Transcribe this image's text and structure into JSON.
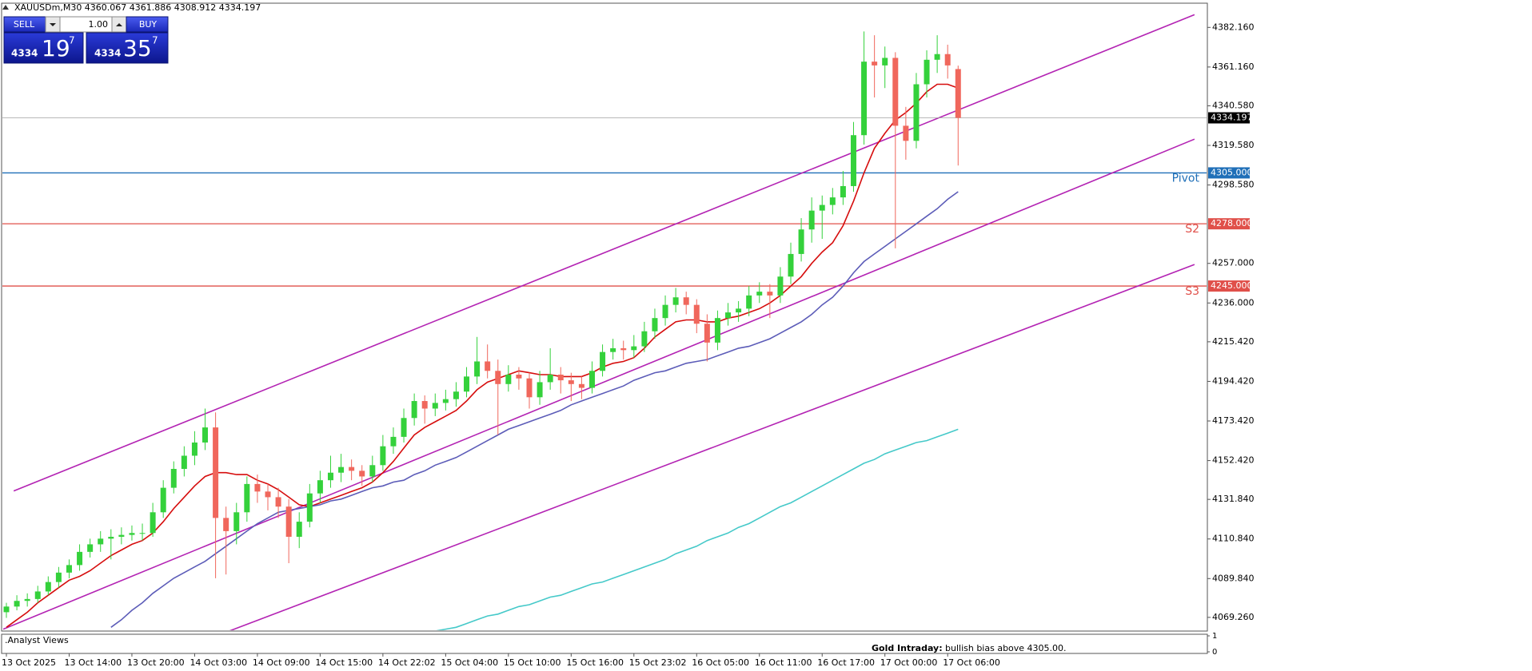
{
  "header": "XAUUSDm,M30  4360.067 4361.886 4308.912 4334.197",
  "trade_panel": {
    "sell": "SELL",
    "buy": "BUY",
    "lots": "1.00",
    "bid": {
      "big": "4334",
      "main": "19",
      "sup": "7"
    },
    "ask": {
      "big": "4334",
      "main": "35",
      "sup": "7"
    }
  },
  "chart_data": {
    "type": "candlestick",
    "categories": [
      "13 Oct 2025",
      null,
      null,
      null,
      null,
      null,
      "13 Oct 14:00",
      null,
      null,
      null,
      null,
      null,
      "13 Oct 20:00",
      null,
      null,
      null,
      null,
      null,
      "14 Oct 03:00",
      null,
      null,
      null,
      null,
      null,
      "14 Oct 09:00",
      null,
      null,
      null,
      null,
      null,
      "14 Oct 15:00",
      null,
      null,
      null,
      null,
      null,
      "14 Oct 22:02",
      null,
      null,
      null,
      null,
      null,
      "15 Oct 04:00",
      null,
      null,
      null,
      null,
      null,
      "15 Oct 10:00",
      null,
      null,
      null,
      null,
      null,
      "15 Oct 16:00",
      null,
      null,
      null,
      null,
      null,
      "15 Oct 23:02",
      null,
      null,
      null,
      null,
      null,
      "16 Oct 05:00",
      null,
      null,
      null,
      null,
      null,
      "16 Oct 11:00",
      null,
      null,
      null,
      null,
      null,
      "16 Oct 17:00",
      null,
      null,
      null,
      null,
      null,
      "17 Oct 00:00",
      null,
      null,
      null,
      null,
      null,
      "17 Oct 06:00",
      null
    ],
    "candles": [
      [
        4072,
        4077,
        4069,
        4075
      ],
      [
        4075,
        4081,
        4073,
        4078
      ],
      [
        4078,
        4082,
        4075,
        4079
      ],
      [
        4079,
        4086,
        4077,
        4083
      ],
      [
        4083,
        4091,
        4081,
        4088
      ],
      [
        4088,
        4096,
        4085,
        4093
      ],
      [
        4093,
        4100,
        4090,
        4097
      ],
      [
        4097,
        4108,
        4094,
        4104
      ],
      [
        4104,
        4111,
        4101,
        4108
      ],
      [
        4108,
        4115,
        4104,
        4111
      ],
      [
        4111,
        4116,
        4100,
        4112
      ],
      [
        4112,
        4117,
        4108,
        4113
      ],
      [
        4113,
        4118,
        4110,
        4114
      ],
      [
        4114,
        4119,
        4110,
        4114
      ],
      [
        4114,
        4130,
        4112,
        4125
      ],
      [
        4125,
        4142,
        4122,
        4138
      ],
      [
        4138,
        4152,
        4135,
        4148
      ],
      [
        4148,
        4160,
        4144,
        4155
      ],
      [
        4155,
        4168,
        4150,
        4162
      ],
      [
        4162,
        4180,
        4158,
        4170
      ],
      [
        4170,
        4178,
        4090,
        4122
      ],
      [
        4122,
        4128,
        4092,
        4115
      ],
      [
        4115,
        4130,
        4108,
        4125
      ],
      [
        4125,
        4144,
        4120,
        4140
      ],
      [
        4140,
        4145,
        4130,
        4136
      ],
      [
        4136,
        4140,
        4126,
        4133
      ],
      [
        4133,
        4138,
        4122,
        4128
      ],
      [
        4128,
        4132,
        4098,
        4112
      ],
      [
        4112,
        4125,
        4106,
        4120
      ],
      [
        4120,
        4140,
        4117,
        4135
      ],
      [
        4135,
        4147,
        4130,
        4142
      ],
      [
        4142,
        4155,
        4138,
        4146
      ],
      [
        4146,
        4156,
        4141,
        4149
      ],
      [
        4149,
        4153,
        4142,
        4147
      ],
      [
        4147,
        4150,
        4139,
        4144
      ],
      [
        4144,
        4155,
        4141,
        4150
      ],
      [
        4150,
        4166,
        4147,
        4160
      ],
      [
        4160,
        4170,
        4156,
        4165
      ],
      [
        4165,
        4180,
        4162,
        4175
      ],
      [
        4175,
        4188,
        4171,
        4184
      ],
      [
        4184,
        4187,
        4172,
        4180
      ],
      [
        4180,
        4188,
        4176,
        4183
      ],
      [
        4183,
        4190,
        4179,
        4185
      ],
      [
        4185,
        4194,
        4181,
        4189
      ],
      [
        4189,
        4202,
        4186,
        4197
      ],
      [
        4197,
        4218,
        4193,
        4205
      ],
      [
        4205,
        4214,
        4196,
        4200
      ],
      [
        4200,
        4206,
        4166,
        4193
      ],
      [
        4193,
        4203,
        4189,
        4198
      ],
      [
        4198,
        4202,
        4190,
        4196
      ],
      [
        4196,
        4199,
        4180,
        4186
      ],
      [
        4186,
        4200,
        4182,
        4194
      ],
      [
        4194,
        4212,
        4190,
        4198
      ],
      [
        4198,
        4202,
        4188,
        4195
      ],
      [
        4195,
        4199,
        4184,
        4193
      ],
      [
        4193,
        4197,
        4185,
        4191
      ],
      [
        4191,
        4205,
        4188,
        4200
      ],
      [
        4200,
        4214,
        4197,
        4210
      ],
      [
        4210,
        4217,
        4206,
        4212
      ],
      [
        4212,
        4216,
        4206,
        4211
      ],
      [
        4211,
        4219,
        4207,
        4213
      ],
      [
        4213,
        4226,
        4210,
        4221
      ],
      [
        4221,
        4233,
        4217,
        4228
      ],
      [
        4228,
        4240,
        4224,
        4235
      ],
      [
        4235,
        4244,
        4231,
        4239
      ],
      [
        4239,
        4242,
        4230,
        4235
      ],
      [
        4235,
        4238,
        4220,
        4225
      ],
      [
        4225,
        4230,
        4205,
        4215
      ],
      [
        4215,
        4232,
        4211,
        4228
      ],
      [
        4228,
        4236,
        4224,
        4231
      ],
      [
        4231,
        4237,
        4226,
        4233
      ],
      [
        4233,
        4245,
        4229,
        4240
      ],
      [
        4240,
        4247,
        4236,
        4242
      ],
      [
        4242,
        4246,
        4228,
        4240
      ],
      [
        4240,
        4255,
        4236,
        4250
      ],
      [
        4250,
        4268,
        4246,
        4262
      ],
      [
        4262,
        4281,
        4258,
        4275
      ],
      [
        4275,
        4292,
        4268,
        4285
      ],
      [
        4285,
        4293,
        4270,
        4288
      ],
      [
        4288,
        4297,
        4283,
        4292
      ],
      [
        4292,
        4306,
        4288,
        4298
      ],
      [
        4298,
        4332,
        4295,
        4325
      ],
      [
        4325,
        4380,
        4320,
        4364
      ],
      [
        4364,
        4378,
        4345,
        4362
      ],
      [
        4362,
        4372,
        4350,
        4366
      ],
      [
        4366,
        4369,
        4265,
        4330
      ],
      [
        4330,
        4340,
        4312,
        4322
      ],
      [
        4322,
        4358,
        4318,
        4352
      ],
      [
        4352,
        4370,
        4345,
        4365
      ],
      [
        4365,
        4378,
        4358,
        4368
      ],
      [
        4368,
        4373,
        4355,
        4362
      ],
      [
        4360.067,
        4361.886,
        4308.912,
        4334.197
      ]
    ],
    "up_color": "#34d13b",
    "down_color": "#f0675c",
    "series": [
      {
        "color": "#d60d0d",
        "values": [
          4064,
          4068,
          4072,
          4077,
          4081,
          4085,
          4089,
          4091,
          4094,
          4098,
          4102,
          4105,
          4108,
          4110,
          4114,
          4120,
          4127,
          4133,
          4139,
          4144,
          4146,
          4146,
          4145,
          4145,
          4142,
          4140,
          4137,
          4133,
          4129,
          4128,
          4130,
          4132,
          4134,
          4136,
          4138,
          4141,
          4146,
          4152,
          4159,
          4166,
          4170,
          4173,
          4176,
          4179,
          4184,
          4190,
          4194,
          4196,
          4198,
          4200,
          4199,
          4198,
          4198,
          4197,
          4197,
          4197,
          4199,
          4202,
          4204,
          4205,
          4207,
          4212,
          4218,
          4222,
          4226,
          4227,
          4227,
          4226,
          4226,
          4228,
          4229,
          4231,
          4233,
          4236,
          4240,
          4245,
          4250,
          4257,
          4263,
          4268,
          4277,
          4290,
          4305,
          4318,
          4326,
          4333,
          4337,
          4342,
          4348,
          4352,
          4352,
          4350
        ]
      },
      {
        "color": "#5c5cb8",
        "values": [
          null,
          null,
          null,
          null,
          null,
          null,
          null,
          null,
          null,
          null,
          4064,
          4068,
          4073,
          4077,
          4082,
          4086,
          4090,
          4093,
          4096,
          4099,
          4103,
          4107,
          4111,
          4115,
          4119,
          4122,
          4125,
          4126,
          4127,
          4128,
          4129,
          4131,
          4132,
          4134,
          4136,
          4138,
          4139,
          4141,
          4142,
          4145,
          4147,
          4150,
          4152,
          4154,
          4157,
          4160,
          4163,
          4166,
          4169,
          4171,
          4173,
          4175,
          4177,
          4179,
          4182,
          4184,
          4186,
          4188,
          4190,
          4192,
          4195,
          4197,
          4199,
          4200,
          4202,
          4204,
          4205,
          4206,
          4208,
          4210,
          4212,
          4213,
          4215,
          4217,
          4220,
          4223,
          4226,
          4230,
          4235,
          4239,
          4245,
          4252,
          4258,
          4262,
          4266,
          4270,
          4274,
          4278,
          4282,
          4286,
          4291,
          4295
        ]
      },
      {
        "color": "#45c9c9",
        "values": [
          null,
          null,
          null,
          null,
          null,
          null,
          null,
          null,
          null,
          null,
          null,
          null,
          null,
          null,
          null,
          null,
          null,
          null,
          null,
          null,
          null,
          null,
          null,
          null,
          null,
          null,
          null,
          null,
          null,
          null,
          null,
          null,
          null,
          null,
          null,
          null,
          null,
          null,
          null,
          null,
          null,
          4062,
          4063,
          4064,
          4066,
          4068,
          4070,
          4071,
          4073,
          4075,
          4076,
          4078,
          4080,
          4081,
          4083,
          4085,
          4087,
          4088,
          4090,
          4092,
          4094,
          4096,
          4098,
          4100,
          4103,
          4105,
          4107,
          4110,
          4112,
          4114,
          4117,
          4119,
          4122,
          4125,
          4128,
          4130,
          4133,
          4136,
          4139,
          4142,
          4145,
          4148,
          4151,
          4153,
          4156,
          4158,
          4160,
          4162,
          4163,
          4165,
          4167,
          4169
        ]
      }
    ],
    "trend_lines": [
      {
        "color": "#b323b3",
        "x": [
          0.7,
          113.6
        ],
        "y": [
          4136.3,
          4388.9
        ]
      },
      {
        "color": "#b323b3",
        "x": [
          -0.3,
          113.6
        ],
        "y": [
          4063.0,
          4322.9
        ]
      },
      {
        "color": "#b323b3",
        "x": [
          21.3,
          113.6
        ],
        "y": [
          4062.0,
          4256.4
        ]
      }
    ],
    "levels": [
      {
        "name": "Pivot",
        "value": 4305,
        "label": "4305.000",
        "color": "#1f6fb8"
      },
      {
        "name": "S2",
        "value": 4278,
        "label": "4278.000",
        "color": "#e0504a"
      },
      {
        "name": "S3",
        "value": 4245,
        "label": "4245.000",
        "color": "#e0504a"
      }
    ],
    "last_price": 4334.197,
    "ylim": [
      4062,
      4395
    ],
    "yticks": [
      {
        "value": 4382.16,
        "label": "4382.160"
      },
      {
        "value": 4361.16,
        "label": "4361.160"
      },
      {
        "value": 4340.58,
        "label": "4340.580"
      },
      {
        "value": 4319.58,
        "label": "4319.580"
      },
      {
        "value": 4298.58,
        "label": "4298.580"
      },
      {
        "value": 4257,
        "label": "4257.000"
      },
      {
        "value": 4236,
        "label": "4236.000"
      },
      {
        "value": 4215.42,
        "label": "4215.420"
      },
      {
        "value": 4194.42,
        "label": "4194.420"
      },
      {
        "value": 4173.42,
        "label": "4173.420"
      },
      {
        "value": 4152.42,
        "label": "4152.420"
      },
      {
        "value": 4131.84,
        "label": "4131.840"
      },
      {
        "value": 4110.84,
        "label": "4110.840"
      },
      {
        "value": 4089.84,
        "label": "4089.840"
      },
      {
        "value": 4069.26,
        "label": "4069.260"
      }
    ],
    "grid": false
  },
  "indicator": {
    "title": ".Analyst Views",
    "heading": "Gold Intraday:",
    "text": "bullish bias above 4305.00.",
    "ylim": [
      0,
      1
    ],
    "yticks": [
      1,
      0
    ]
  }
}
